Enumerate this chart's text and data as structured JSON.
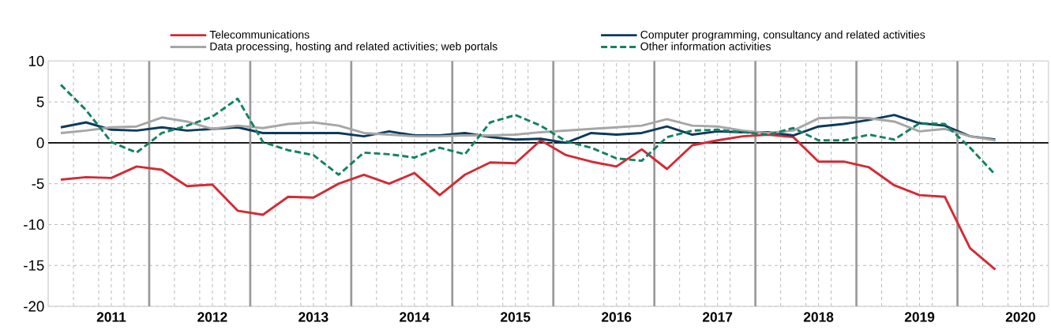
{
  "chart_data": {
    "type": "line",
    "x": [
      2010.5,
      2010.75,
      2011,
      2011.25,
      2011.5,
      2011.75,
      2012,
      2012.25,
      2012.5,
      2012.75,
      2013,
      2013.25,
      2013.5,
      2013.75,
      2014,
      2014.25,
      2014.5,
      2014.75,
      2015,
      2015.25,
      2015.5,
      2015.75,
      2016,
      2016.25,
      2016.5,
      2016.75,
      2017,
      2017.25,
      2017.5,
      2017.75,
      2018,
      2018.25,
      2018.5,
      2018.75,
      2019,
      2019.25,
      2019.5,
      2019.75
    ],
    "series": [
      {
        "name": "Telecommunications",
        "color": "#d42a35",
        "line_style": "solid",
        "values": [
          -4.5,
          -4.2,
          -4.3,
          -2.9,
          -3.3,
          -5.3,
          -5.1,
          -8.3,
          -8.8,
          -6.6,
          -6.7,
          -5.0,
          -3.9,
          -5.0,
          -3.7,
          -6.4,
          -3.9,
          -2.4,
          -2.5,
          0.3,
          -1.5,
          -2.3,
          -2.9,
          -0.8,
          -3.2,
          -0.3,
          0.3,
          0.8,
          1.0,
          0.7,
          -2.3,
          -2.3,
          -3.0,
          -5.2,
          -6.4,
          -6.6,
          -12.9,
          -15.5
        ]
      },
      {
        "name": "Computer programming, consultancy and related activities",
        "color": "#0d3a5c",
        "line_style": "solid",
        "values": [
          1.9,
          2.5,
          1.6,
          1.5,
          1.9,
          1.5,
          1.7,
          1.9,
          1.2,
          1.2,
          1.2,
          1.2,
          0.8,
          1.4,
          0.9,
          0.9,
          1.2,
          0.7,
          0.4,
          0.5,
          0.0,
          1.2,
          1.0,
          1.2,
          2.0,
          1.0,
          1.4,
          1.3,
          1.3,
          0.9,
          2.0,
          2.3,
          2.8,
          3.4,
          2.4,
          2.1,
          0.8,
          0.4
        ]
      },
      {
        "name": "Data processing, hosting and related activities; web portals",
        "color": "#a6a6a6",
        "line_style": "solid",
        "values": [
          1.2,
          1.5,
          1.9,
          2.0,
          3.1,
          2.6,
          1.7,
          2.1,
          1.8,
          2.3,
          2.5,
          2.1,
          1.2,
          1.0,
          0.8,
          0.8,
          0.9,
          0.9,
          1.0,
          1.3,
          1.5,
          1.7,
          1.9,
          2.1,
          2.9,
          2.1,
          2.0,
          1.5,
          1.2,
          1.5,
          3.0,
          3.1,
          3.0,
          2.6,
          1.4,
          1.7,
          0.8,
          0.3
        ]
      },
      {
        "name": "Other information activities",
        "color": "#138262",
        "line_style": "dashed",
        "values": [
          7.1,
          4.0,
          0.1,
          -1.2,
          1.2,
          2.1,
          3.2,
          5.4,
          0.1,
          -0.9,
          -1.5,
          -3.9,
          -1.2,
          -1.4,
          -1.8,
          -0.6,
          -1.4,
          2.5,
          3.4,
          2.1,
          0.2,
          -0.6,
          -1.9,
          -2.2,
          0.7,
          1.5,
          1.6,
          1.3,
          1.0,
          1.8,
          0.3,
          0.3,
          1.0,
          0.4,
          2.4,
          2.3,
          -0.6,
          -3.9
        ]
      }
    ],
    "xlim": [
      2010.375,
      2020.275
    ],
    "xticks": [
      {
        "value": 2010.625,
        "label": null
      },
      {
        "value": 2010.875,
        "label": null
      },
      2011,
      {
        "value": 2011.125,
        "label": null
      },
      {
        "value": 2011.625,
        "label": null
      },
      {
        "value": 2011.875,
        "label": null
      },
      2012,
      {
        "value": 2012.125,
        "label": null
      },
      {
        "value": 2012.625,
        "label": null
      },
      {
        "value": 2012.875,
        "label": null
      },
      2013,
      {
        "value": 2013.125,
        "label": null
      },
      {
        "value": 2013.625,
        "label": null
      },
      {
        "value": 2013.875,
        "label": null
      },
      2014,
      {
        "value": 2014.125,
        "label": null
      },
      {
        "value": 2014.625,
        "label": null
      },
      {
        "value": 2014.875,
        "label": null
      },
      2015,
      {
        "value": 2015.125,
        "label": null
      },
      {
        "value": 2015.625,
        "label": null
      },
      {
        "value": 2015.875,
        "label": null
      },
      2016,
      {
        "value": 2016.125,
        "label": null
      },
      {
        "value": 2016.625,
        "label": null
      },
      {
        "value": 2016.875,
        "label": null
      },
      2017,
      {
        "value": 2017.125,
        "label": null
      },
      {
        "value": 2017.625,
        "label": null
      },
      {
        "value": 2017.875,
        "label": null
      },
      2018,
      {
        "value": 2018.125,
        "label": null
      },
      {
        "value": 2018.625,
        "label": null
      },
      {
        "value": 2018.875,
        "label": null
      },
      2019,
      {
        "value": 2019.125,
        "label": null
      },
      {
        "value": 2019.625,
        "label": null
      },
      {
        "value": 2019.875,
        "label": null
      },
      2020,
      {
        "value": 2020.125,
        "label": null
      }
    ],
    "ylim": [
      -20,
      10
    ],
    "yticks": [
      -20,
      -15,
      -10,
      -5,
      0,
      5,
      10
    ],
    "grid": true,
    "legend": "top",
    "marker": "none",
    "ref_lines": [
      {
        "axis": "y",
        "value": 0,
        "color": "#000000"
      },
      {
        "axis": "x",
        "value": 2011.375,
        "color": "#999999"
      },
      {
        "axis": "x",
        "value": 2012.375,
        "color": "#999999"
      },
      {
        "axis": "x",
        "value": 2013.375,
        "color": "#999999"
      },
      {
        "axis": "x",
        "value": 2014.375,
        "color": "#999999"
      },
      {
        "axis": "x",
        "value": 2015.375,
        "color": "#999999"
      },
      {
        "axis": "x",
        "value": 2016.375,
        "color": "#999999"
      },
      {
        "axis": "x",
        "value": 2017.375,
        "color": "#999999"
      },
      {
        "axis": "x",
        "value": 2018.375,
        "color": "#999999"
      },
      {
        "axis": "x",
        "value": 2019.375,
        "color": "#999999"
      }
    ]
  }
}
